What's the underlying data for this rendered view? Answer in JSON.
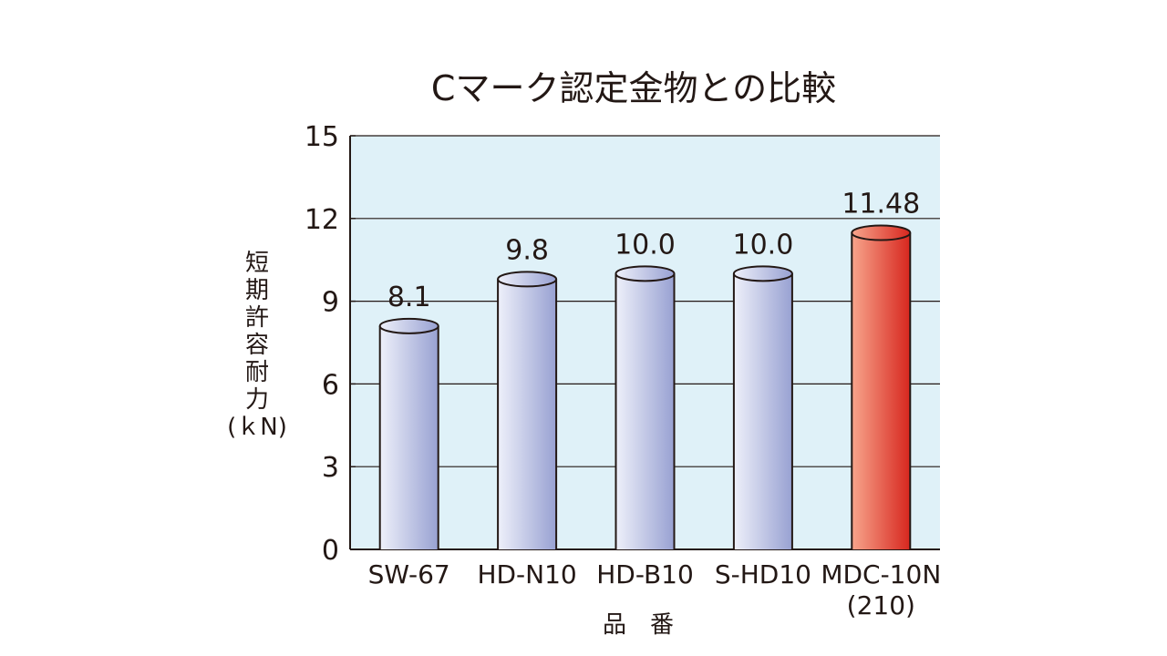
{
  "chart_data": {
    "type": "bar",
    "title": "Cマーク認定金物との比較",
    "categories": [
      "SW-67",
      "HD-N10",
      "HD-B10",
      "S-HD10",
      "MDC-10N"
    ],
    "category_sublabels": [
      "",
      "",
      "",
      "",
      "(210)"
    ],
    "series": [
      {
        "values": [
          8.1,
          9.8,
          10.0,
          10.0,
          11.48
        ]
      }
    ],
    "value_labels": [
      "8.1",
      "9.8",
      "10.0",
      "10.0",
      "11.48"
    ],
    "ylabel_lines": [
      "短",
      "期",
      "許",
      "容",
      "耐",
      "力",
      "(ｋN)"
    ],
    "xlabel": "品　番",
    "ylim": [
      0,
      15
    ],
    "yticks": [
      0,
      3,
      6,
      9,
      12,
      15
    ],
    "grid": true,
    "colors": {
      "plot_background": "#dff1f8",
      "bar_default_light": "#eef0fa",
      "bar_default_dark": "#98a1d2",
      "bar_highlight_light": "#f7a58c",
      "bar_highlight_dark": "#d7261e",
      "outline": "#231815"
    },
    "highlight_index": 4
  }
}
